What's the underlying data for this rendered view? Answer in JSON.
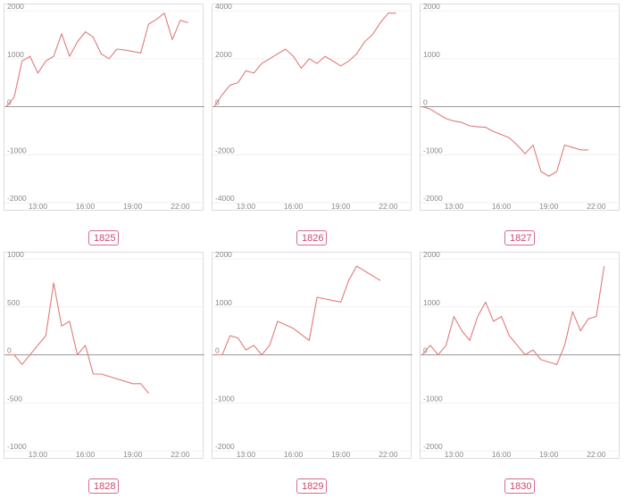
{
  "chart_data": [
    {
      "type": "line",
      "label": "1825",
      "x": [
        "11:00",
        "11:30",
        "12:00",
        "12:30",
        "13:00",
        "13:30",
        "14:00",
        "14:30",
        "15:00",
        "15:30",
        "16:00",
        "16:30",
        "17:00",
        "17:30",
        "18:00",
        "18:30",
        "19:00",
        "19:30",
        "20:00",
        "20:30",
        "21:00",
        "21:30",
        "22:00",
        "22:30"
      ],
      "values": [
        0,
        200,
        950,
        1050,
        700,
        950,
        1050,
        1520,
        1050,
        1350,
        1560,
        1450,
        1100,
        1000,
        1200,
        1180,
        1150,
        1120,
        1720,
        1820,
        1950,
        1400,
        1800,
        1750
      ],
      "ylim": [
        -2000,
        2000
      ],
      "yticks": [
        "2000",
        "1000",
        "0",
        "-1000",
        "-2000"
      ],
      "xticks": [
        "13:00",
        "16:00",
        "19:00",
        "22:00"
      ]
    },
    {
      "type": "line",
      "label": "1826",
      "x": [
        "11:00",
        "11:30",
        "12:00",
        "12:30",
        "13:00",
        "13:30",
        "14:00",
        "14:30",
        "15:00",
        "15:30",
        "16:00",
        "16:30",
        "17:00",
        "17:30",
        "18:00",
        "18:30",
        "19:00",
        "19:30",
        "20:00",
        "20:30",
        "21:00",
        "21:30",
        "22:00",
        "22:30"
      ],
      "values": [
        0,
        500,
        900,
        1000,
        1500,
        1400,
        1800,
        2000,
        2200,
        2400,
        2100,
        1600,
        2000,
        1800,
        2100,
        1900,
        1700,
        1900,
        2200,
        2700,
        3000,
        3500,
        3900,
        3900
      ],
      "ylim": [
        -4000,
        4000
      ],
      "yticks": [
        "4000",
        "2000",
        "0",
        "-2000",
        "-4000"
      ],
      "xticks": [
        "13:00",
        "16:00",
        "19:00",
        "22:00"
      ]
    },
    {
      "type": "line",
      "label": "1827",
      "x": [
        "11:00",
        "11:30",
        "12:00",
        "12:30",
        "13:00",
        "13:30",
        "14:00",
        "14:30",
        "15:00",
        "15:30",
        "16:00",
        "16:30",
        "17:00",
        "17:30",
        "18:00",
        "18:30",
        "19:00",
        "19:30",
        "20:00",
        "20:30",
        "21:00",
        "21:30"
      ],
      "values": [
        0,
        -50,
        -150,
        -250,
        -300,
        -330,
        -400,
        -420,
        -430,
        -520,
        -580,
        -650,
        -800,
        -980,
        -800,
        -1350,
        -1450,
        -1350,
        -800,
        -850,
        -900,
        -900
      ],
      "ylim": [
        -2000,
        2000
      ],
      "yticks": [
        "2000",
        "1000",
        "0",
        "-1000",
        "-2000"
      ],
      "xticks": [
        "13:00",
        "16:00",
        "19:00",
        "22:00"
      ]
    },
    {
      "type": "line",
      "label": "1828",
      "x": [
        "11:00",
        "11:30",
        "12:00",
        "13:30",
        "14:00",
        "14:30",
        "15:00",
        "15:30",
        "16:00",
        "16:30",
        "17:00",
        "19:00",
        "19:30",
        "20:00"
      ],
      "values": [
        0,
        0,
        -100,
        200,
        750,
        300,
        350,
        0,
        100,
        -200,
        -200,
        -300,
        -300,
        -400
      ],
      "ylim": [
        -1000,
        1000
      ],
      "yticks": [
        "1000",
        "500",
        "0",
        "-500",
        "-1000"
      ],
      "xticks": [
        "13:00",
        "16:00",
        "19:00",
        "22:00"
      ]
    },
    {
      "type": "line",
      "label": "1829",
      "x": [
        "11:00",
        "11:30",
        "12:00",
        "12:30",
        "13:00",
        "13:30",
        "14:00",
        "14:30",
        "15:00",
        "16:00",
        "17:00",
        "17:30",
        "19:00",
        "19:30",
        "20:00",
        "21:30"
      ],
      "values": [
        0,
        0,
        400,
        350,
        100,
        200,
        0,
        200,
        700,
        550,
        300,
        1200,
        1100,
        1550,
        1850,
        1550
      ],
      "ylim": [
        -2000,
        2000
      ],
      "yticks": [
        "2000",
        "1000",
        "0",
        "-1000",
        "-2000"
      ],
      "xticks": [
        "13:00",
        "16:00",
        "19:00",
        "22:00"
      ]
    },
    {
      "type": "line",
      "label": "1830",
      "x": [
        "11:00",
        "11:30",
        "12:00",
        "12:30",
        "13:00",
        "13:30",
        "14:00",
        "14:30",
        "15:00",
        "15:30",
        "16:00",
        "16:30",
        "17:00",
        "17:30",
        "18:00",
        "18:30",
        "19:00",
        "19:30",
        "20:00",
        "20:30",
        "21:00",
        "21:30",
        "22:00",
        "22:30"
      ],
      "values": [
        0,
        200,
        0,
        200,
        800,
        500,
        300,
        800,
        1100,
        700,
        800,
        400,
        200,
        0,
        100,
        -100,
        -150,
        -200,
        200,
        900,
        500,
        750,
        800,
        1850
      ],
      "ylim": [
        -2000,
        2000
      ],
      "yticks": [
        "2000",
        "1000",
        "0",
        "-1000",
        "-2000"
      ],
      "xticks": [
        "13:00",
        "16:00",
        "19:00",
        "22:00"
      ]
    }
  ],
  "colors": {
    "line": "#e07b7b",
    "badge": "#d86a8f",
    "zero_line": "#9a9a9a"
  }
}
